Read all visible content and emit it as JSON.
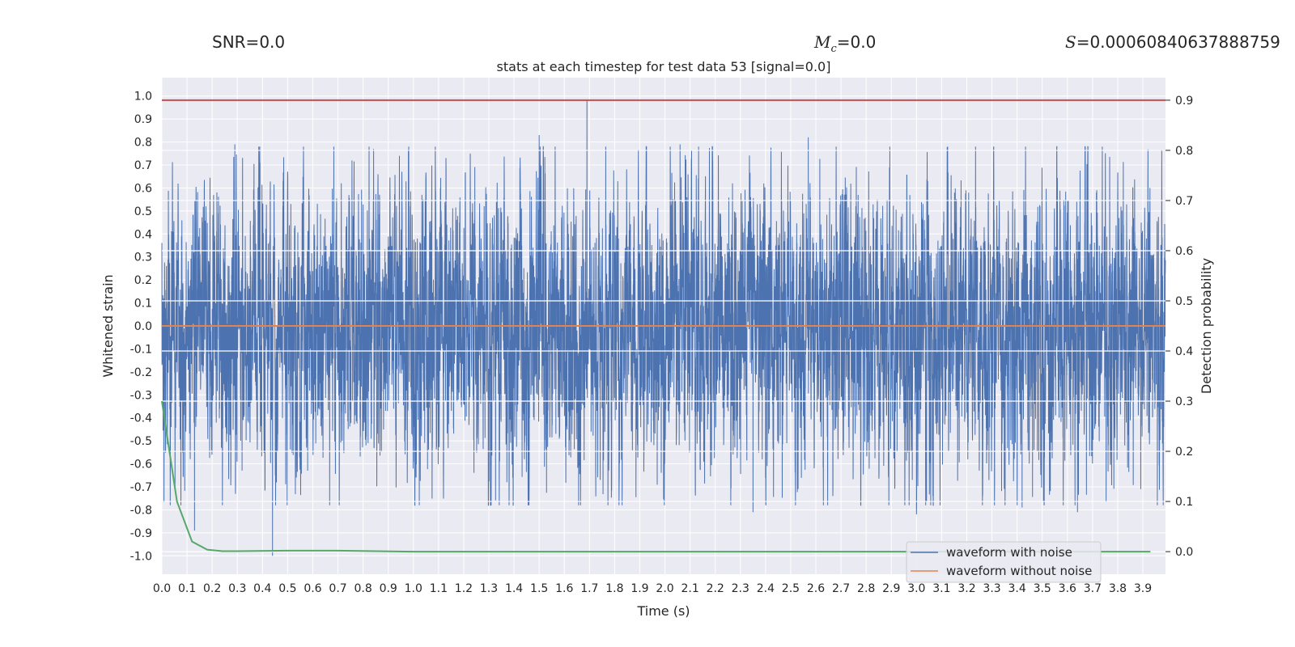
{
  "header": {
    "snr_label": "SNR=",
    "snr_value": "0.0",
    "mc_symbol": "M",
    "mc_sub": "c",
    "mc_value": "=0.0",
    "s_symbol": "S",
    "s_value": "=0.00060840637888759"
  },
  "chart_data": {
    "type": "line",
    "title": "stats at each timestep for test data 53 [signal=0.0]",
    "xlabel": "Time (s)",
    "ylabel": "Whitened strain",
    "y2label": "Detection probability",
    "xlim": [
      0.0,
      3.99
    ],
    "ylim": [
      -1.08,
      1.08
    ],
    "y2lim": [
      -0.045,
      0.945
    ],
    "x_ticks": [
      0.0,
      0.1,
      0.2,
      0.3,
      0.4,
      0.5,
      0.6,
      0.7,
      0.8,
      0.9,
      1.0,
      1.1,
      1.2,
      1.3,
      1.4,
      1.5,
      1.6,
      1.7,
      1.8,
      1.9,
      2.0,
      2.1,
      2.2,
      2.3,
      2.4,
      2.5,
      2.6,
      2.7,
      2.8,
      2.9,
      3.0,
      3.1,
      3.2,
      3.3,
      3.4,
      3.5,
      3.6,
      3.7,
      3.8,
      3.9
    ],
    "y_ticks": [
      1.0,
      0.9,
      0.8,
      0.7,
      0.6,
      0.5,
      0.4,
      0.3,
      0.2,
      0.1,
      0.0,
      -0.1,
      -0.2,
      -0.3,
      -0.4,
      -0.5,
      -0.6,
      -0.7,
      -0.8,
      -0.9,
      -1.0
    ],
    "y2_ticks": [
      0.9,
      0.8,
      0.7,
      0.6,
      0.5,
      0.4,
      0.3,
      0.2,
      0.1,
      0.0
    ],
    "grid": true,
    "legend": "bottom-right",
    "colors": {
      "noise": "#4c72b0",
      "clean": "#dd8452",
      "prob": "#55a868",
      "threshold": "#c44e52",
      "bg": "#eaeaf2"
    },
    "series": [
      {
        "name": "waveform with noise",
        "role": "noise",
        "axis": "left",
        "sample_rate": 2048,
        "amplitude": 0.3,
        "peaks": [
          [
            0.13,
            -0.89
          ],
          [
            0.29,
            0.79
          ],
          [
            0.44,
            -1.0
          ],
          [
            1.5,
            0.83
          ],
          [
            1.69,
            0.98
          ],
          [
            2.06,
            0.79
          ],
          [
            2.35,
            -0.81
          ],
          [
            2.57,
            0.82
          ],
          [
            3.0,
            -0.82
          ],
          [
            3.42,
            -0.79
          ],
          [
            3.64,
            -0.81
          ]
        ]
      },
      {
        "name": "waveform without noise",
        "role": "clean",
        "axis": "left",
        "x": [
          0.0,
          3.99
        ],
        "y": [
          0.0,
          0.0
        ]
      },
      {
        "role": "prob",
        "axis": "right",
        "x": [
          0.0,
          0.03,
          0.06,
          0.12,
          0.18,
          0.24,
          0.3,
          0.5,
          0.7,
          1.0,
          2.0,
          3.0,
          3.93
        ],
        "y": [
          0.3,
          0.2,
          0.1,
          0.02,
          0.004,
          0.001,
          0.001,
          0.002,
          0.002,
          0.0,
          0.0,
          0.0,
          0.0
        ]
      },
      {
        "role": "threshold",
        "axis": "right",
        "x": [
          0.0,
          3.99
        ],
        "y": [
          0.9,
          0.9
        ]
      }
    ]
  }
}
